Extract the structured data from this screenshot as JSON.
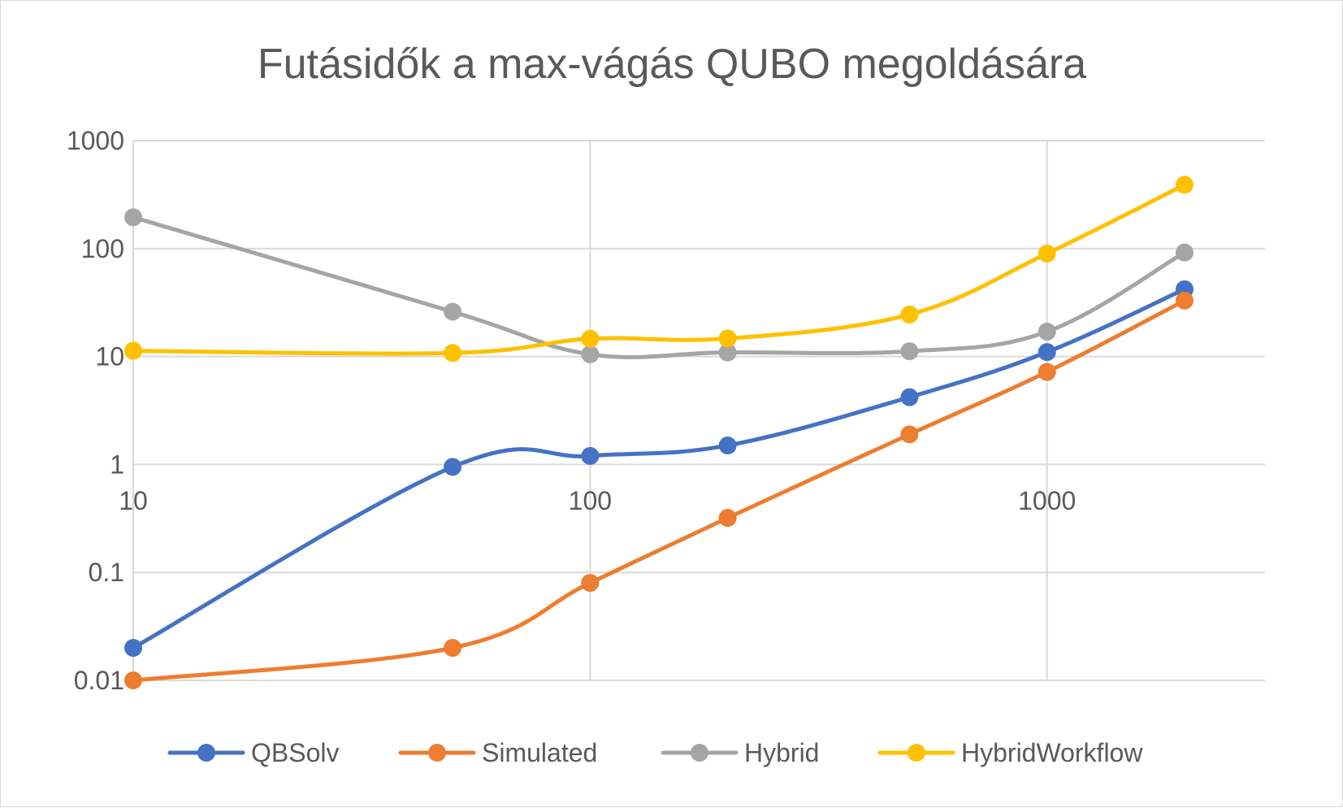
{
  "chart_data": {
    "type": "line",
    "title": "Futásidők a max-vágás QUBO megoldására",
    "x_scale": "log",
    "y_scale": "log",
    "xlim": [
      10,
      3000
    ],
    "ylim": [
      0.01,
      1000
    ],
    "x_ticks": [
      10,
      100,
      1000
    ],
    "x_tick_labels": [
      "10",
      "100",
      "1000"
    ],
    "y_ticks": [
      1000,
      100,
      10,
      1,
      0.1,
      0.01
    ],
    "y_tick_labels": [
      "1000",
      "100",
      "10",
      "1",
      "0.1",
      "0.01"
    ],
    "grid": true,
    "smooth": true,
    "legend_position": "bottom",
    "series": [
      {
        "name": "QBSolv",
        "color": "#4472c4",
        "x": [
          10,
          50,
          100,
          200,
          500,
          1000,
          2000
        ],
        "y": [
          0.02,
          0.95,
          1.2,
          1.5,
          4.2,
          11,
          42
        ]
      },
      {
        "name": "Simulated",
        "color": "#ed7d31",
        "x": [
          10,
          50,
          100,
          200,
          500,
          1000,
          2000
        ],
        "y": [
          0.01,
          0.02,
          0.08,
          0.32,
          1.9,
          7.2,
          33
        ]
      },
      {
        "name": "Hybrid",
        "color": "#a5a5a5",
        "x": [
          10,
          50,
          100,
          200,
          500,
          1000,
          2000
        ],
        "y": [
          195,
          26,
          10.5,
          10.9,
          11.2,
          17,
          92
        ]
      },
      {
        "name": "HybridWorkflow",
        "color": "#ffc000",
        "x": [
          10,
          50,
          100,
          200,
          500,
          1000,
          2000
        ],
        "y": [
          11.3,
          10.8,
          14.6,
          14.7,
          24.5,
          90,
          390
        ]
      }
    ]
  }
}
